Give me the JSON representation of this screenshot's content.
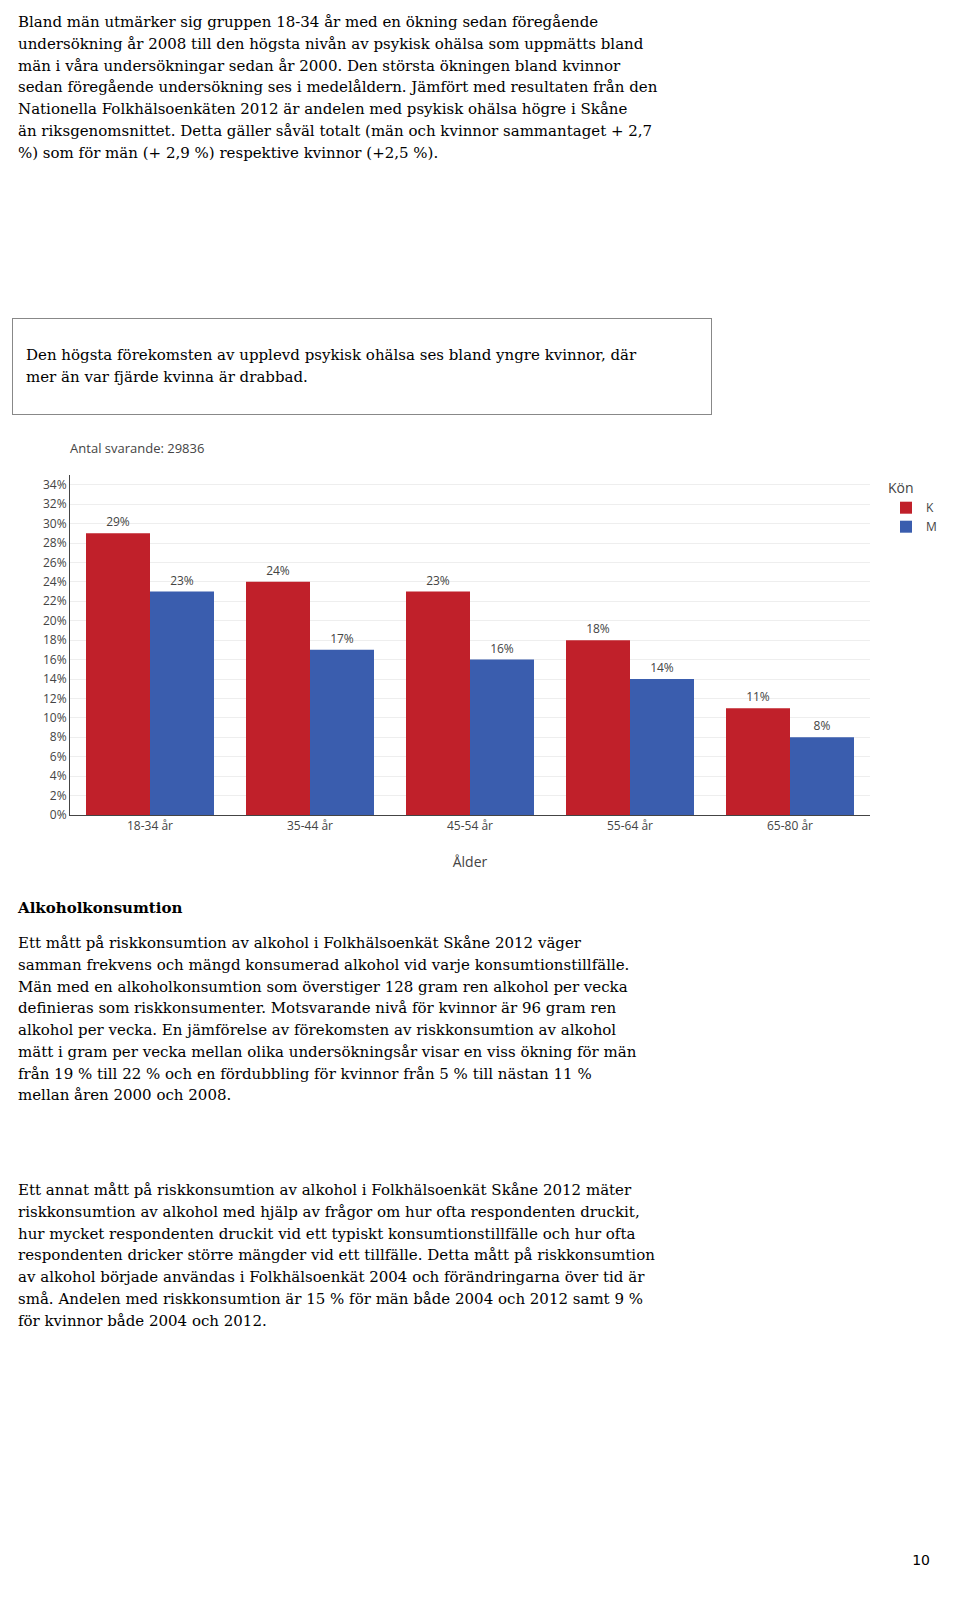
{
  "chart_data": {
    "type": "bar",
    "subtitle": "Antal svarande: 29836",
    "xlabel": "Ålder",
    "legend_title": "Kön",
    "categories": [
      "18-34 år",
      "35-44 år",
      "45-54 år",
      "55-64 år",
      "65-80 år"
    ],
    "series": [
      {
        "name": "K",
        "color": "#C0202A",
        "values": [
          29,
          24,
          23,
          18,
          11
        ],
        "value_labels": [
          "29%",
          "24%",
          "23%",
          "18%",
          "11%"
        ]
      },
      {
        "name": "M",
        "color": "#3A5DAE",
        "values": [
          23,
          17,
          16,
          14,
          8
        ],
        "value_labels": [
          "23%",
          "17%",
          "16%",
          "14%",
          "8%"
        ]
      }
    ],
    "ylim": [
      0,
      35
    ],
    "yticks": [
      {
        "value": 0,
        "label": "0%"
      },
      {
        "value": 2,
        "label": "2%"
      },
      {
        "value": 4,
        "label": "4%"
      },
      {
        "value": 6,
        "label": "6%"
      },
      {
        "value": 8,
        "label": "8%"
      },
      {
        "value": 10,
        "label": "10%"
      },
      {
        "value": 12,
        "label": "12%"
      },
      {
        "value": 14,
        "label": "14%"
      },
      {
        "value": 16,
        "label": "16%"
      },
      {
        "value": 18,
        "label": "18%"
      },
      {
        "value": 20,
        "label": "20%"
      },
      {
        "value": 22,
        "label": "22%"
      },
      {
        "value": 24,
        "label": "24%"
      },
      {
        "value": 26,
        "label": "26%"
      },
      {
        "value": 28,
        "label": "28%"
      },
      {
        "value": 30,
        "label": "30%"
      },
      {
        "value": 32,
        "label": "32%"
      },
      {
        "value": 34,
        "label": "34%"
      }
    ],
    "grid": true,
    "data_labels": true,
    "annotations": [
      "Bland män utmärker sig gruppen 18-34 år med en ökning sedan föregående\nundersökning år 2008 till den högsta nivån av psykisk ohälsa som uppmätts bland\nmän i våra undersökningar sedan år 2000. Den största ökningen bland kvinnor\nsedan föregående undersökning ses i medelåldern. Jämfört med resultaten från den\nNationella Folkhälsoenkäten 2012 är andelen med psykisk ohälsa högre i Skåne\nän riksgenomsnittet. Detta gäller såväl totalt (män och kvinnor sammantaget + 2,7\n%) som för män (+ 2,9 %) respektive kvinnor (+2,5 %).",
      "Den högsta förekomsten av upplevd psykisk ohälsa ses bland yngre kvinnor, där\nmer än var fjärde kvinna är drabbad.",
      "Alkoholkonsumtion",
      "Ett mått på riskkonsumtion av alkohol i Folkhälsoenkät Skåne 2012 väger\nsamman frekvens och mängd konsumerad alkohol vid varje konsumtionstillfälle.\nMän med en alkoholkonsumtion som överstiger 128 gram ren alkohol per vecka\ndefinieras som riskkonsumenter. Motsvarande nivå för kvinnor är 96 gram ren\nalkohol per vecka. En jämförelse av förekomsten av riskkonsumtion av alkohol\nmätt i gram per vecka mellan olika undersökningsår visar en viss ökning för män\nfrån 19 % till 22 % och en fördubbling för kvinnor från 5 % till nästan 11 %\nmellan åren 2000 och 2008.",
      "Ett annat mått på riskkonsumtion av alkohol i Folkhälsoenkät Skåne 2012 mäter\nriskkonsumtion av alkohol med hjälp av frågor om hur ofta respondenten druckit,\nhur mycket respondenten druckit vid ett typiskt konsumtionstillfälle och hur ofta\nrespondenten dricker större mängder vid ett tillfälle. Detta mått på riskkonsumtion\nav alkohol började användas i Folkhälsoenkät 2004 och förändringarna över tid är\nsmå. Andelen med riskkonsumtion är 15 % för män både 2004 och 2012 samt 9 %\nför kvinnor både 2004 och 2012.",
      "10"
    ]
  }
}
